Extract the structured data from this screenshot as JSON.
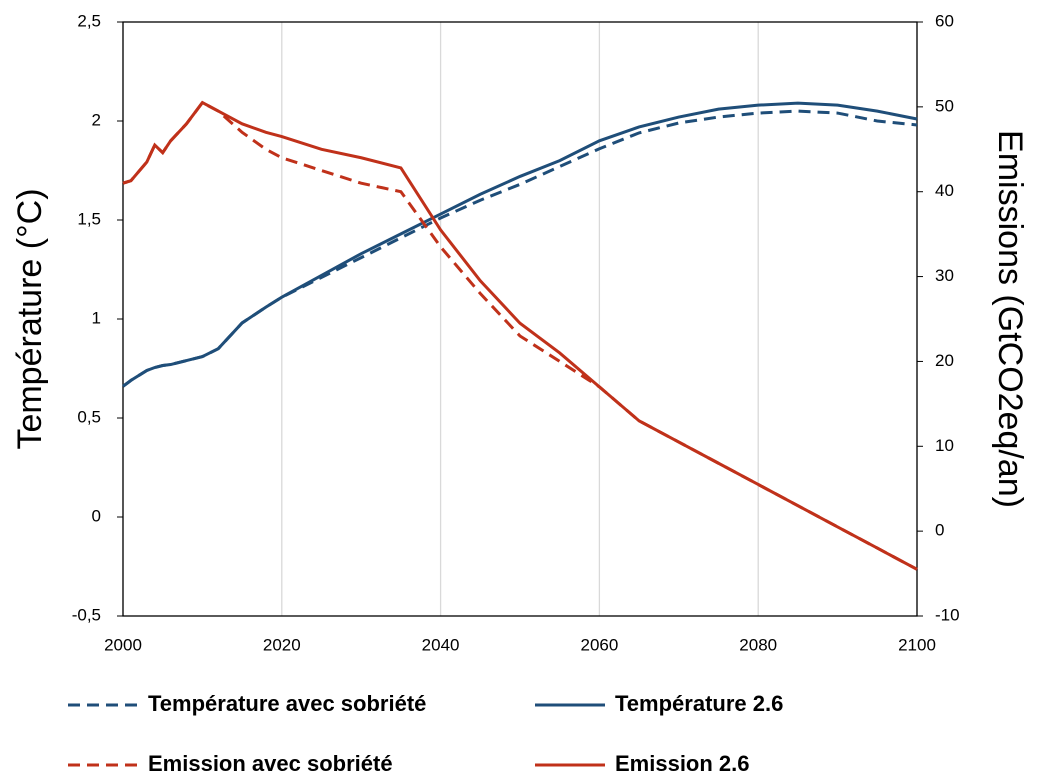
{
  "chart_data": {
    "type": "line",
    "ylabel": "Température (°C)",
    "y2label": "Emissions (GtCO2eq/an)",
    "x": [
      2000,
      2001,
      2003,
      2004,
      2005,
      2006,
      2008,
      2010,
      2012,
      2015,
      2018,
      2020,
      2025,
      2030,
      2035,
      2040,
      2045,
      2050,
      2055,
      2060,
      2065,
      2070,
      2075,
      2080,
      2085,
      2090,
      2095,
      2100
    ],
    "xlim": [
      2000,
      2100
    ],
    "xticks": [
      2000,
      2020,
      2040,
      2060,
      2080,
      2100
    ],
    "ylim": [
      -0.5,
      2.5
    ],
    "yticks": [
      {
        "value": -0.5,
        "label": "-0,5"
      },
      0,
      {
        "value": 0.5,
        "label": "0,5"
      },
      1,
      {
        "value": 1.5,
        "label": "1,5"
      },
      2,
      {
        "value": 2.5,
        "label": "2,5"
      }
    ],
    "y2lim": [
      -10,
      60
    ],
    "y2ticks": [
      -10,
      0,
      10,
      20,
      30,
      40,
      50,
      60
    ],
    "grid": "x",
    "legend": "bottom",
    "series": [
      {
        "name": "Température avec sobriété",
        "color": "#1f4e79",
        "line_style": "dashed",
        "values": [
          0.66,
          0.69,
          0.74,
          0.755,
          0.765,
          0.77,
          0.79,
          0.81,
          0.85,
          0.98,
          1.06,
          1.11,
          1.21,
          1.31,
          1.41,
          1.51,
          1.6,
          1.68,
          1.77,
          1.86,
          1.94,
          1.99,
          2.02,
          2.04,
          2.05,
          2.04,
          2.0,
          1.98
        ]
      },
      {
        "name": "Température 2.6",
        "color": "#1f4e79",
        "line_style": "solid",
        "values": [
          0.66,
          0.69,
          0.74,
          0.755,
          0.765,
          0.77,
          0.79,
          0.81,
          0.85,
          0.98,
          1.06,
          1.11,
          1.22,
          1.33,
          1.43,
          1.53,
          1.63,
          1.72,
          1.8,
          1.9,
          1.97,
          2.02,
          2.06,
          2.08,
          2.09,
          2.08,
          2.05,
          2.01
        ]
      },
      {
        "name": "Emission avec sobriété",
        "color": "#c0311a",
        "line_style": "dashed",
        "axis": "y2",
        "values": [
          41,
          41.3,
          43.5,
          45.5,
          44.6,
          46,
          48,
          50.5,
          49.5,
          47,
          45,
          44,
          42.5,
          41,
          40,
          33.5,
          28,
          23,
          20,
          17,
          13,
          10.5,
          8,
          5.5,
          3,
          0.5,
          -2,
          -4.5
        ]
      },
      {
        "name": "Emission 2.6",
        "color": "#c0311a",
        "line_style": "solid",
        "axis": "y2",
        "values": [
          41,
          41.3,
          43.5,
          45.5,
          44.6,
          46,
          48,
          50.5,
          49.5,
          48,
          47,
          46.5,
          45,
          44,
          42.8,
          35.5,
          29.5,
          24.5,
          21,
          17,
          13,
          10.5,
          8,
          5.5,
          3,
          0.5,
          -2,
          -4.5
        ]
      }
    ]
  }
}
